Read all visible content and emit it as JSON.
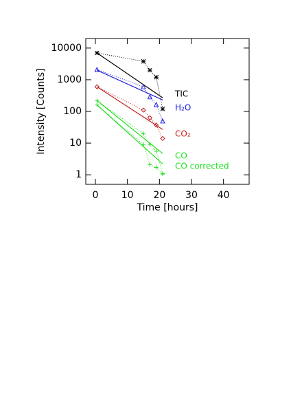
{
  "chart_data": {
    "type": "scatter",
    "xlabel": "Time [hours]",
    "ylabel": "Intensity [Counts]",
    "xlim": [
      -3,
      48
    ],
    "xticks": [
      0,
      10,
      20,
      30,
      40
    ],
    "ylim": [
      0.5,
      20000
    ],
    "yticks": [
      1,
      10,
      100,
      1000,
      10000
    ],
    "log_y": true,
    "x": [
      0.5,
      15,
      17,
      19,
      21
    ],
    "fit_x": [
      0.5,
      21
    ],
    "series": [
      {
        "name": "TIC",
        "color": "#000000",
        "marker": "asterisk",
        "values": [
          7000,
          3800,
          2000,
          1200,
          120
        ],
        "fit": [
          7000,
          270
        ]
      },
      {
        "name": "H₂O",
        "color": "#2020e0",
        "marker": "triangle",
        "values": [
          2100,
          600,
          290,
          165,
          50
        ],
        "fit": [
          2000,
          230
        ]
      },
      {
        "name": "CO₂",
        "color": "#c02020",
        "marker": "diamond",
        "values": [
          600,
          110,
          63,
          37,
          14
        ],
        "fit": [
          600,
          27
        ]
      },
      {
        "name": "CO",
        "color": "#20e020",
        "marker": "plus",
        "values": [
          220,
          20,
          9,
          5.5,
          1.1
        ],
        "fit": [
          220,
          4.7
        ]
      },
      {
        "name": "CO corrected",
        "color": "#20e020",
        "marker": "plus",
        "values": [
          160,
          9,
          2.1,
          1.7,
          1.05
        ],
        "fit": [
          160,
          2.2
        ]
      }
    ]
  }
}
